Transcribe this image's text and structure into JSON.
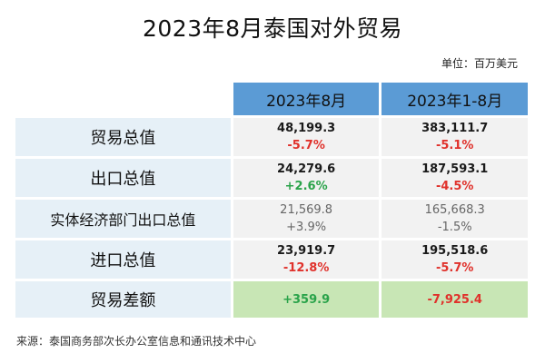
{
  "title": "2023年8月泰国对外贸易",
  "unit": "单位：百万美元",
  "table": {
    "columns": [
      "2023年8月",
      "2023年1-8月"
    ],
    "rows": [
      {
        "label": "贸易总值",
        "c1": {
          "value": "48,199.3",
          "change": "-5.7%"
        },
        "c2": {
          "value": "383,111.7",
          "change": "-5.1%"
        }
      },
      {
        "label": "出口总值",
        "c1": {
          "value": "24,279.6",
          "change": "+2.6%"
        },
        "c2": {
          "value": "187,593.1",
          "change": "-4.5%"
        }
      },
      {
        "label": "实体经济部门出口总值",
        "c1": {
          "value": "21,569.8",
          "change": "+3.9%"
        },
        "c2": {
          "value": "165,668.3",
          "change": "-1.5%"
        }
      },
      {
        "label": "进口总值",
        "c1": {
          "value": "23,919.7",
          "change": "-12.8%"
        },
        "c2": {
          "value": "195,518.6",
          "change": "-5.7%"
        }
      },
      {
        "label": "贸易差额",
        "c1": {
          "value": "+359.9"
        },
        "c2": {
          "value": "-7,925.4"
        }
      }
    ]
  },
  "source": "来源：泰国商务部次长办公室信息和通讯技术中心",
  "colors": {
    "header": "#5b9bd5",
    "label_bg": "#e6f0f7",
    "value_bg": "#f2f2f2",
    "balance_bg": "#c8e6b5",
    "negative": "#e0312b",
    "positive": "#2aa34a"
  }
}
